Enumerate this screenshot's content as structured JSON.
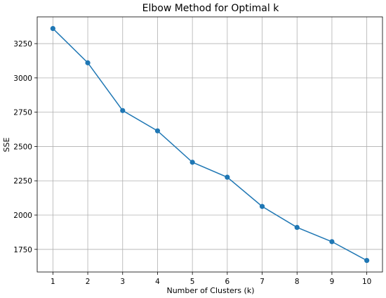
{
  "chart_data": {
    "type": "line",
    "title": "Elbow Method for Optimal k",
    "xlabel": "Number of Clusters (k)",
    "ylabel": "SSE",
    "x": [
      1,
      2,
      3,
      4,
      5,
      6,
      7,
      8,
      9,
      10
    ],
    "series": [
      {
        "values": [
          3360,
          3110,
          2762,
          2614,
          2385,
          2276,
          2063,
          1910,
          1806,
          1669
        ],
        "color": "#1f77b4",
        "marker": "circle"
      }
    ],
    "xlim": [
      0.55,
      10.45
    ],
    "ylim": [
      1585,
      3445
    ],
    "xticks": [
      1,
      2,
      3,
      4,
      5,
      6,
      7,
      8,
      9,
      10
    ],
    "yticks": [
      1750,
      2000,
      2250,
      2500,
      2750,
      3000,
      3250
    ],
    "grid": true,
    "legend": false
  }
}
